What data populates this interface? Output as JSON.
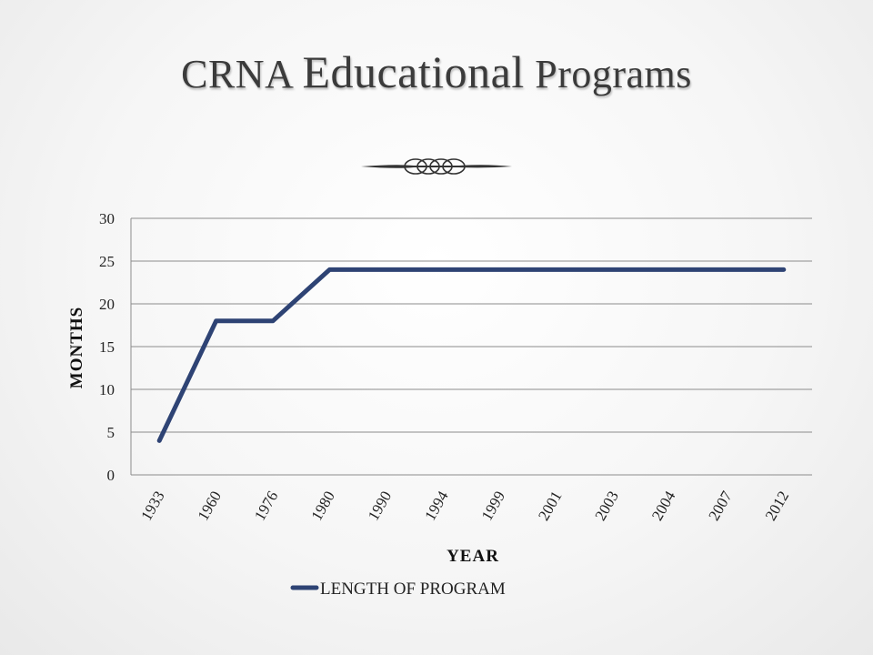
{
  "slide": {
    "title_part1": "CRNA ",
    "title_part2": "Educational",
    "title_part3": " Programs"
  },
  "colors": {
    "line": "#2e4374",
    "grid": "#8c8c8c",
    "title": "#3b3b3b"
  },
  "chart_data": {
    "type": "line",
    "categories": [
      "1933",
      "1960",
      "1976",
      "1980",
      "1990",
      "1994",
      "1999",
      "2001",
      "2003",
      "2004",
      "2007",
      "2012"
    ],
    "series": [
      {
        "name": "LENGTH OF PROGRAM",
        "values": [
          4,
          18,
          18,
          24,
          24,
          24,
          24,
          24,
          24,
          24,
          24,
          24
        ]
      }
    ],
    "xlabel": "YEAR",
    "ylabel": "MONTHS",
    "ylim": [
      0,
      30
    ],
    "yticks": [
      "0",
      "5",
      "10",
      "15",
      "20",
      "25",
      "30"
    ],
    "grid": true,
    "legend_position": "bottom"
  }
}
